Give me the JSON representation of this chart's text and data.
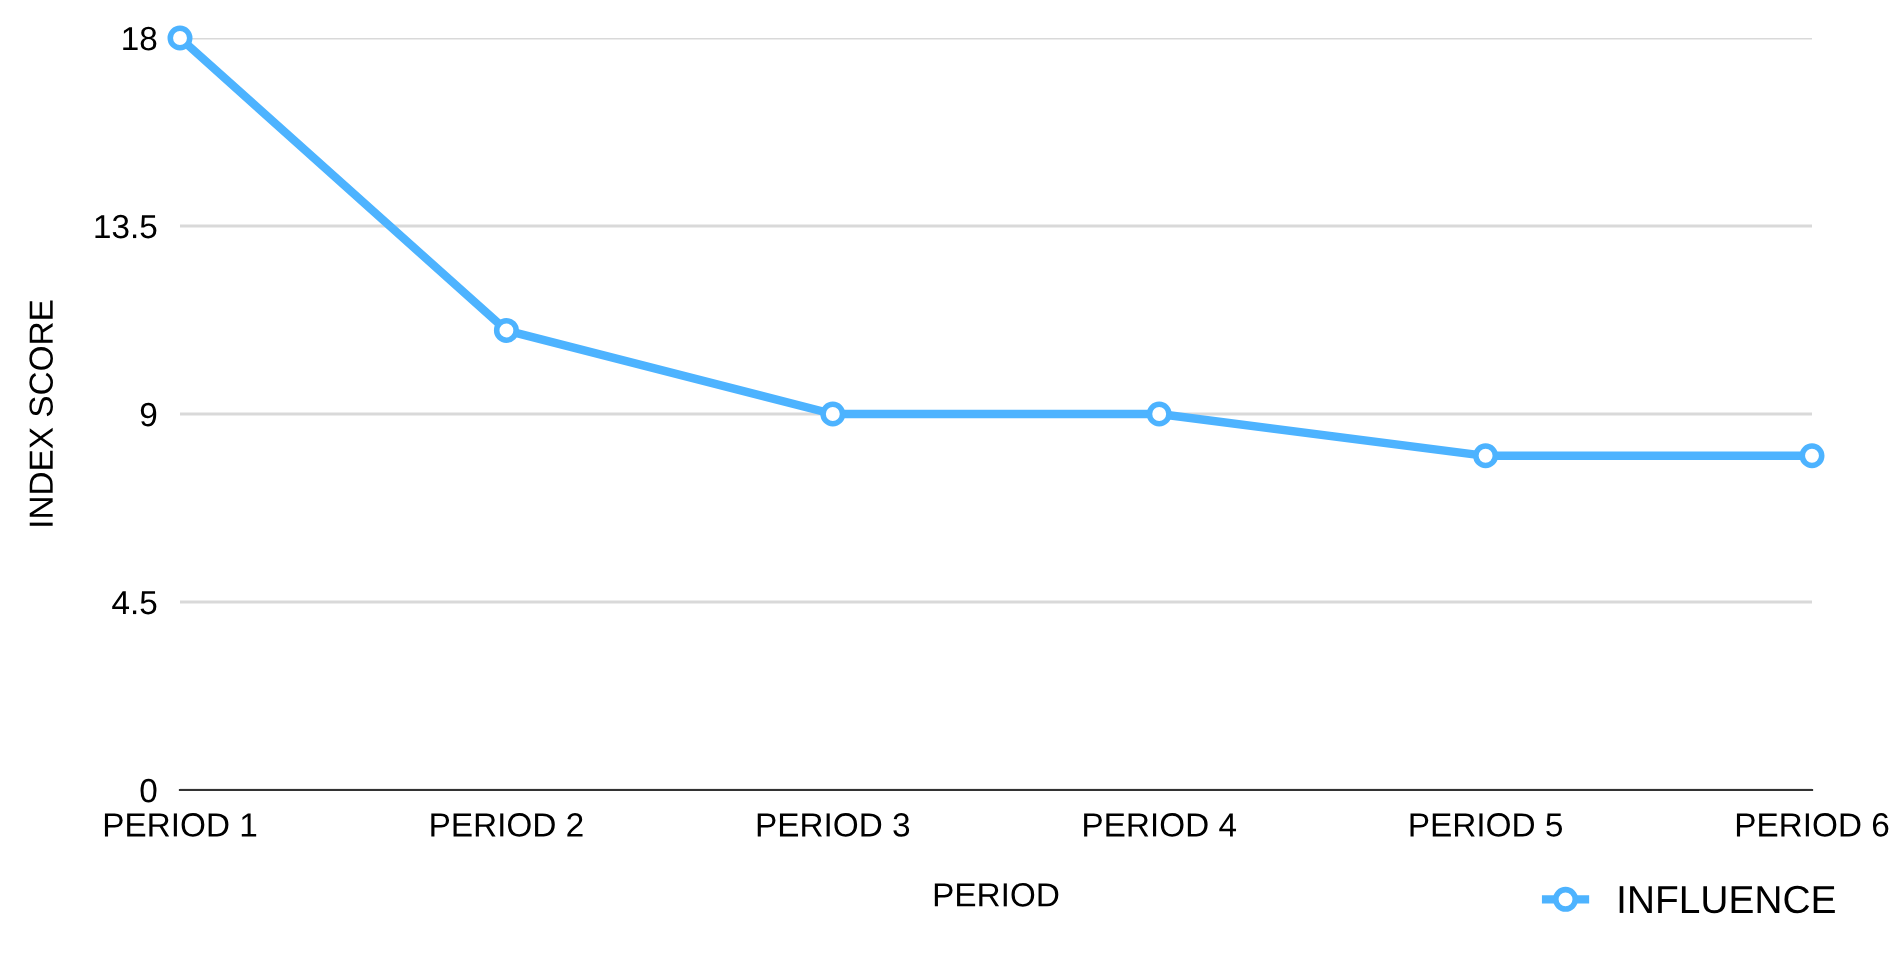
{
  "chart_data": {
    "type": "line",
    "xlabel": "PERIOD",
    "ylabel": "INDEX SCORE",
    "categories": [
      "PERIOD 1",
      "PERIOD 2",
      "PERIOD 3",
      "PERIOD 4",
      "PERIOD 5",
      "PERIOD 6"
    ],
    "series": [
      {
        "name": "INFLUENCE",
        "color": "#4db3ff",
        "values": [
          18,
          11,
          9,
          9,
          8,
          8
        ]
      }
    ],
    "ylim": [
      0,
      18
    ],
    "yticks": [
      0,
      4.5,
      9,
      13.5,
      18
    ],
    "grid": "y",
    "legend": "bottom right",
    "marker": "circle",
    "line_style": "solid"
  }
}
